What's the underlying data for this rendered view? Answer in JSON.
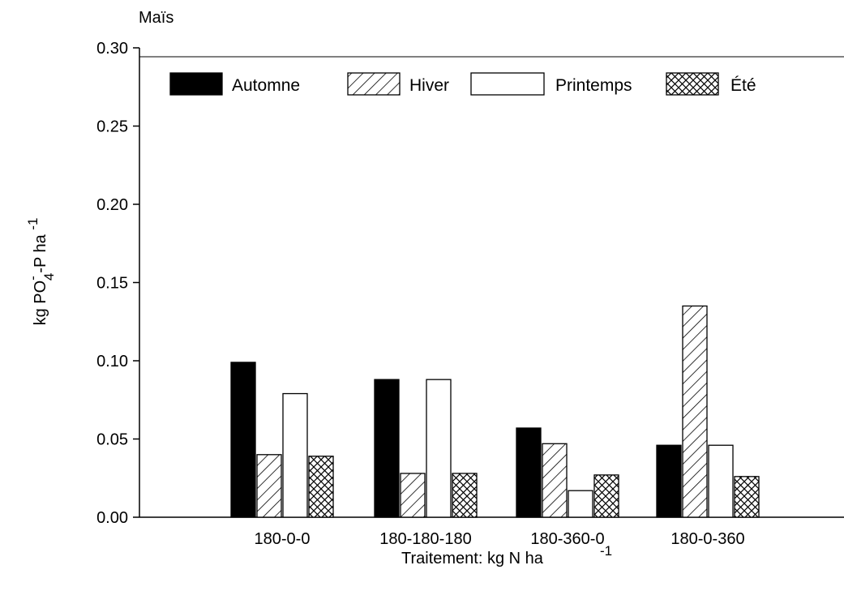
{
  "chart_data": {
    "type": "bar",
    "title": "Maïs",
    "xlabel": "Traitement: kg N ha",
    "xlabel_sup": "-1",
    "ylabel": {
      "prefix": "kg PO",
      "sup": "-",
      "sub": "4",
      "suffix": "-P ha ",
      "exp": "-1"
    },
    "ylim": [
      0,
      0.3
    ],
    "yticks": [
      "0.00",
      "0.05",
      "0.10",
      "0.15",
      "0.20",
      "0.25",
      "0.30"
    ],
    "categories": [
      "180-0-0",
      "180-180-180",
      "180-360-0",
      "180-0-360"
    ],
    "legend_position": "top",
    "grid": false,
    "series": [
      {
        "name": "Automne",
        "pattern": "solid",
        "color": "#000000",
        "values": [
          0.099,
          0.088,
          0.057,
          0.046
        ]
      },
      {
        "name": "Hiver",
        "pattern": "diagonal",
        "color": "#ffffff",
        "values": [
          0.04,
          0.028,
          0.047,
          0.135
        ]
      },
      {
        "name": "Printemps",
        "pattern": "empty",
        "color": "#ffffff",
        "values": [
          0.079,
          0.088,
          0.017,
          0.046
        ]
      },
      {
        "name": "Été",
        "pattern": "crosshatch",
        "color": "#ffffff",
        "values": [
          0.039,
          0.028,
          0.027,
          0.026
        ]
      }
    ]
  }
}
